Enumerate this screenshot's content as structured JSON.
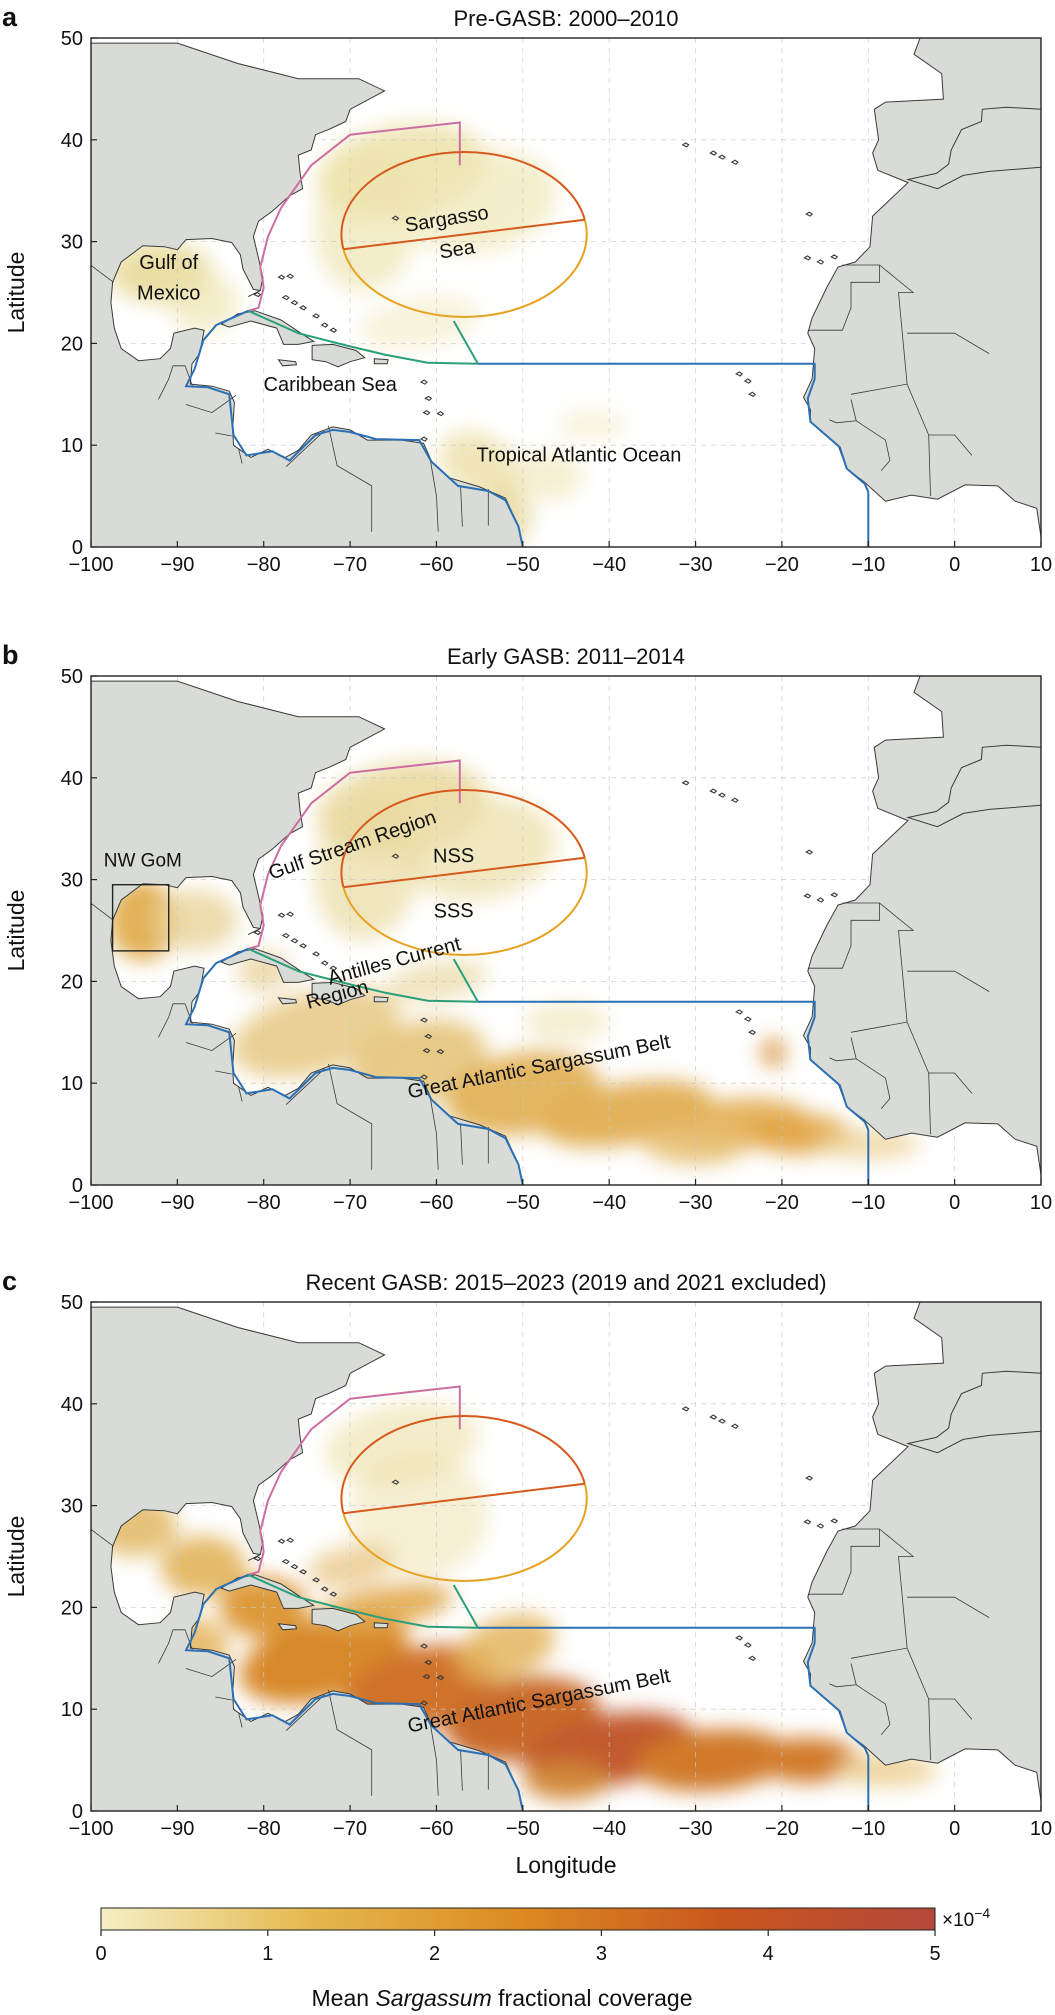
{
  "panels": [
    {
      "letter": "a",
      "title": "Pre-GASB: 2000–2010",
      "labels": [
        "Gulf of",
        "Mexico",
        "Sargasso",
        "Sea",
        "Caribbean Sea",
        "Tropical Atlantic Ocean"
      ],
      "ylabel": "Latitude",
      "xlabel": "",
      "density": "low"
    },
    {
      "letter": "b",
      "title": "Early GASB: 2011–2014",
      "labels": [
        "Gulf Stream Region",
        "NSS",
        "SSS",
        "NW GoM",
        "Antilles Current",
        "Region",
        "Great Atlantic Sargassum Belt"
      ],
      "ylabel": "Latitude",
      "xlabel": "",
      "density": "medium"
    },
    {
      "letter": "c",
      "title": "Recent GASB: 2015–2023 (2019 and 2021 excluded)",
      "labels": [
        "Great Atlantic Sargassum Belt"
      ],
      "ylabel": "Latitude",
      "xlabel": "Longitude",
      "density": "high"
    }
  ],
  "axes": {
    "x_ticks": [
      "−100",
      "−90",
      "−80",
      "−70",
      "−60",
      "−50",
      "−40",
      "−30",
      "−20",
      "−10",
      "0",
      "10"
    ],
    "y_ticks": [
      "0",
      "10",
      "20",
      "30",
      "40",
      "50"
    ],
    "xlim": [
      -100,
      10
    ],
    "ylim": [
      0,
      50
    ]
  },
  "colorbar": {
    "ticks": [
      "0",
      "1",
      "2",
      "3",
      "4",
      "5"
    ],
    "multiplier": "×10",
    "exponent": "−4",
    "label_pre": "Mean ",
    "label_italic": "Sargassum",
    "label_post": " fractional coverage",
    "range": [
      0,
      5
    ],
    "colors": [
      "#f5efc6",
      "#e5b94e",
      "#dc8a22",
      "#c9561e",
      "#b4483a"
    ]
  },
  "colors": {
    "land": "#d9dcd6",
    "coast": "#3a3a3a",
    "gulf_stream_boundary": "#cc6ea3",
    "nss_boundary": "#d65a1e",
    "sss_boundary": "#e8a222",
    "antilles_boundary": "#2a9f7a",
    "tropical_boundary": "#2b6fb4"
  }
}
